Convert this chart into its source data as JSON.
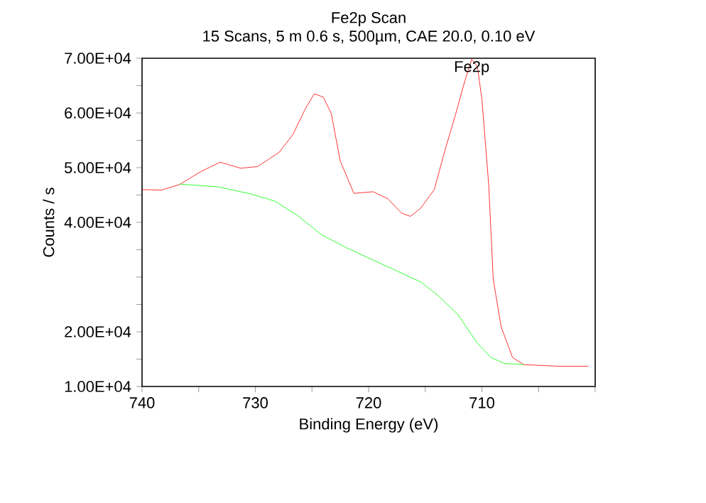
{
  "chart_data": {
    "type": "line",
    "title": "Fe2p Scan",
    "subtitle": "15 Scans,  5 m 0.6 s,  500µm,  CAE 20.0,  0.10 eV",
    "xlabel": "Binding Energy (eV)",
    "ylabel": "Counts / s",
    "xlim": [
      740,
      700
    ],
    "ylim": [
      10000,
      70000
    ],
    "xticks": [
      740,
      {
        "value": 735,
        "label": null
      },
      730,
      {
        "value": 725,
        "label": null
      },
      720,
      {
        "value": 715,
        "label": null
      },
      710,
      {
        "value": 705,
        "label": null
      },
      {
        "value": 700,
        "label": null
      }
    ],
    "yticks": [
      {
        "value": 10000,
        "label": "1.00E+04"
      },
      {
        "value": 15000,
        "label": null
      },
      {
        "value": 20000,
        "label": "2.00E+04"
      },
      {
        "value": 25000,
        "label": null
      },
      {
        "value": 30000,
        "label": null
      },
      {
        "value": 35000,
        "label": null
      },
      {
        "value": 40000,
        "label": "4.00E+04"
      },
      {
        "value": 45000,
        "label": null
      },
      {
        "value": 50000,
        "label": "5.00E+04"
      },
      {
        "value": 55000,
        "label": null
      },
      {
        "value": 60000,
        "label": "6.00E+04"
      },
      {
        "value": 65000,
        "label": null
      },
      {
        "value": 70000,
        "label": "7.00E+04"
      }
    ],
    "marker": "none",
    "annotations": [
      {
        "text": "Fe2p",
        "x": 710.9,
        "y": 69800
      }
    ],
    "series": [
      {
        "color": "#ff0000",
        "x": [
          740,
          738.3,
          736.7,
          734.8,
          733.1,
          731.3,
          729.8,
          727.9,
          726.7,
          725.6,
          724.8,
          724.0,
          723.3,
          722.5,
          721.3,
          719.6,
          718.3,
          717.1,
          716.3,
          715.4,
          714.2,
          713.3,
          712.3,
          711.5,
          710.9,
          710.4,
          710.0,
          709.4,
          709.0,
          708.3,
          707.3,
          706.3,
          703.3,
          700.6
        ],
        "values": [
          46000,
          45900,
          46900,
          49300,
          51000,
          49900,
          50200,
          52800,
          56000,
          60700,
          63500,
          62900,
          59900,
          51200,
          45300,
          45600,
          44300,
          41700,
          41100,
          42600,
          46000,
          52900,
          59900,
          65900,
          69800,
          68500,
          62500,
          46900,
          29600,
          20900,
          15300,
          14000,
          13700,
          13700
        ]
      },
      {
        "color": "#00ff00",
        "x": [
          736.7,
          733.3,
          730.4,
          728.3,
          726.3,
          724.2,
          722.1,
          720.0,
          717.9,
          715.4,
          713.8,
          712.1,
          710.4,
          709.2,
          708.0,
          706.3
        ],
        "values": [
          47000,
          46500,
          45200,
          43900,
          41300,
          37800,
          35500,
          33500,
          31500,
          29100,
          26500,
          23100,
          17900,
          15300,
          14200,
          14000
        ]
      }
    ]
  }
}
